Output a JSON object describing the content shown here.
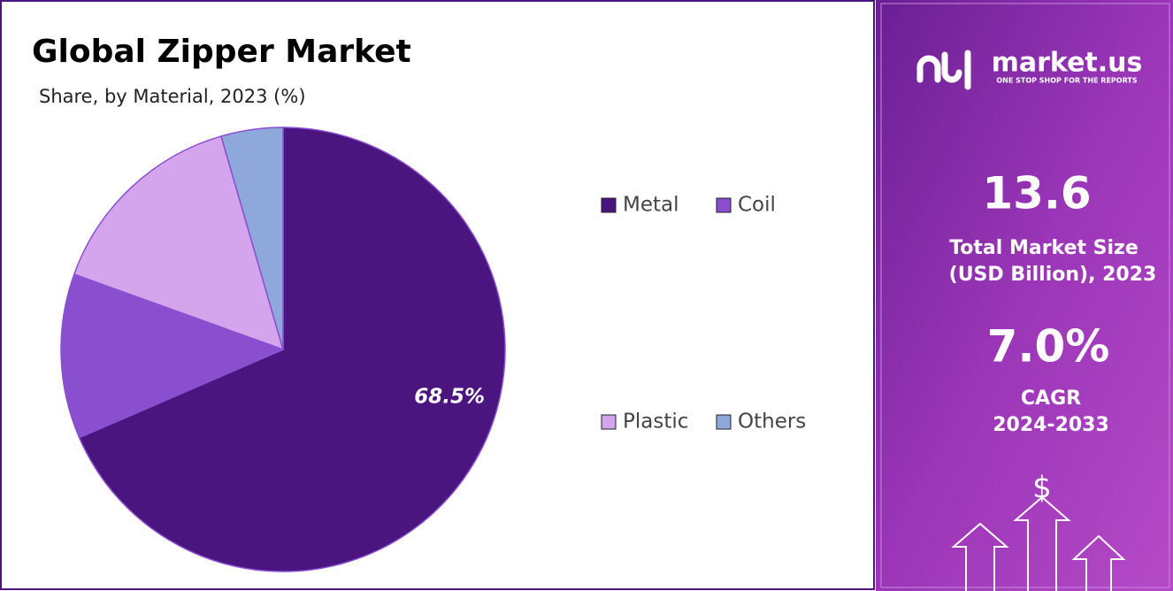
{
  "chart_data": {
    "type": "pie",
    "title": "Global Zipper Market",
    "subtitle": "Share, by Material, 2023 (%)",
    "categories": [
      "Metal",
      "Coil",
      "Plastic",
      "Others"
    ],
    "values": [
      68.5,
      12.0,
      15.0,
      4.5
    ],
    "value_labels": [
      "68.5%",
      null,
      null,
      null
    ],
    "colors": [
      "#4b1580",
      "#8a4fce",
      "#d4a5ec",
      "#8fa8dc"
    ]
  },
  "side_panel": {
    "logo": "market.us",
    "tagline": "ONE STOP SHOP FOR THE REPORTS",
    "market_size": "13.6",
    "market_size_label": [
      "Total Market Size",
      "(USD Billion), 2023"
    ],
    "cagr": "7.0%",
    "cagr_label": [
      "CAGR",
      "2024-2033"
    ],
    "icon": "$"
  }
}
